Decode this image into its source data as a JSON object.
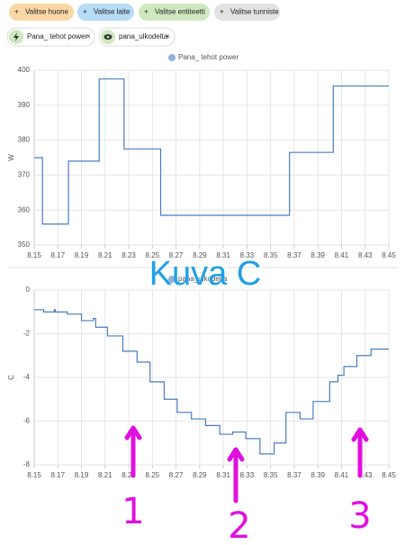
{
  "filters": [
    "Valitse huone",
    "Valitse laite",
    "Valitse entiteetti",
    "Valitse tunniste"
  ],
  "selected": [
    "Pana_ tehot power",
    "pana_ulkodelta"
  ],
  "annotations": {
    "title": "Kuva C",
    "markers": [
      "1",
      "2",
      "3"
    ]
  },
  "chart_data": [
    {
      "type": "line",
      "step": "after",
      "ylabel": "W",
      "color": "#4a7cc0",
      "grid": true,
      "series": [
        {
          "name": "Pana_ tehot power",
          "color": "#4a7cc0",
          "x": [
            8.15,
            8.157,
            8.179,
            8.205,
            8.226,
            8.257,
            8.366,
            8.403,
            8.45
          ],
          "values": [
            375,
            356,
            374,
            397.5,
            377.5,
            358.5,
            376.5,
            395.5,
            395.5
          ]
        }
      ],
      "xlim": [
        8.15,
        8.45
      ],
      "xticks": [
        8.15,
        8.17,
        8.19,
        8.21,
        8.23,
        8.25,
        8.27,
        8.29,
        8.31,
        8.33,
        8.35,
        8.37,
        8.39,
        8.41,
        8.43,
        8.45
      ],
      "ylim": [
        350,
        400
      ],
      "yticks": [
        350,
        360,
        370,
        380,
        390,
        400
      ]
    },
    {
      "type": "line",
      "step": "after",
      "ylabel": "C",
      "color": "#4a7cc0",
      "grid": true,
      "series": [
        {
          "name": "pana_ulkodelta",
          "color": "#4a7cc0",
          "x": [
            8.15,
            8.158,
            8.167,
            8.168,
            8.178,
            8.19,
            8.2,
            8.202,
            8.212,
            8.225,
            8.237,
            8.248,
            8.26,
            8.271,
            8.283,
            8.295,
            8.307,
            8.318,
            8.329,
            8.341,
            8.353,
            8.363,
            8.375,
            8.386,
            8.4,
            8.407,
            8.412,
            8.423,
            8.435,
            8.45
          ],
          "values": [
            -0.9,
            -1.0,
            -0.9,
            -1.0,
            -1.1,
            -1.4,
            -1.3,
            -1.7,
            -2.1,
            -2.8,
            -3.3,
            -4.2,
            -5.0,
            -5.6,
            -5.9,
            -6.2,
            -6.6,
            -6.5,
            -6.8,
            -7.5,
            -7.0,
            -5.6,
            -5.9,
            -5.1,
            -4.2,
            -3.9,
            -3.5,
            -3.0,
            -2.7,
            -2.7
          ]
        }
      ],
      "xlim": [
        8.15,
        8.45
      ],
      "xticks": [
        8.15,
        8.17,
        8.19,
        8.21,
        8.23,
        8.25,
        8.27,
        8.29,
        8.31,
        8.33,
        8.35,
        8.37,
        8.39,
        8.41,
        8.43,
        8.45
      ],
      "ylim": [
        -8,
        0
      ],
      "yticks": [
        -8,
        -6,
        -4,
        -2,
        0
      ]
    }
  ]
}
